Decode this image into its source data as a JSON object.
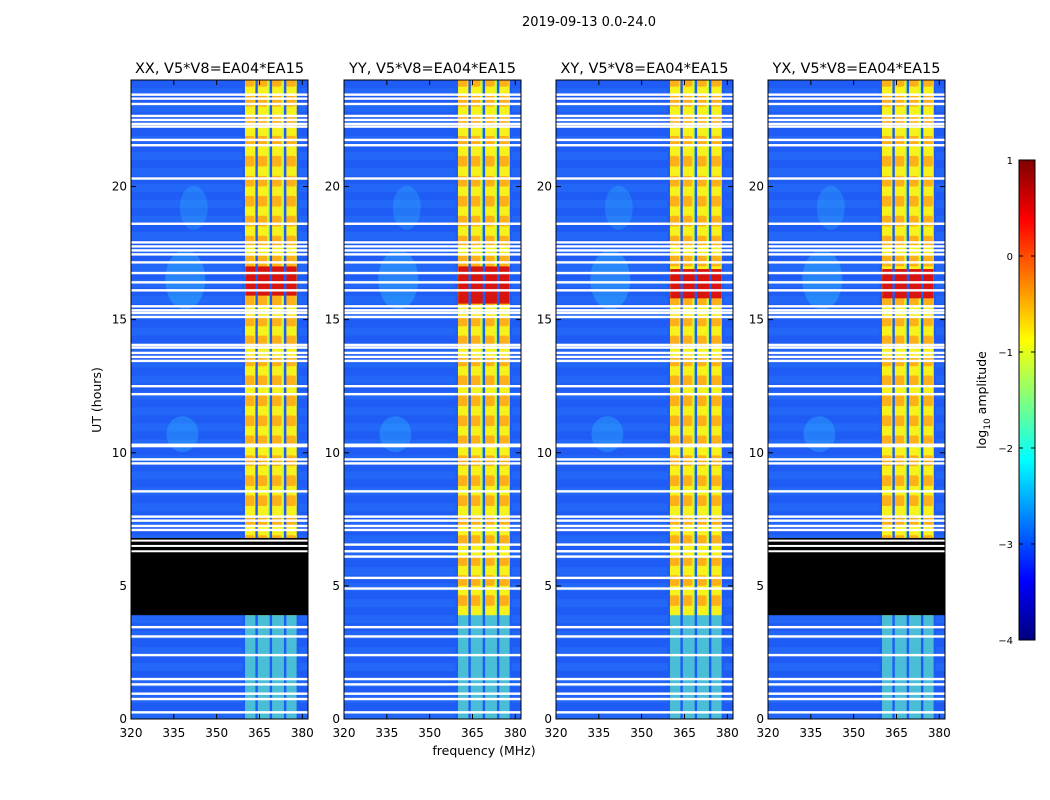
{
  "chart_data": {
    "type": "heatmap",
    "suptitle": "2019-09-13 0.0-24.0",
    "xlabel": "frequency (MHz)",
    "ylabel": "UT (hours)",
    "xlim": [
      320,
      382
    ],
    "ylim": [
      0,
      24
    ],
    "xticks": [
      "320",
      "335",
      "350",
      "365",
      "380"
    ],
    "yticks": [
      "0",
      "5",
      "10",
      "15",
      "20"
    ],
    "colorbar": {
      "label": "log10 amplitude",
      "label_base": "log",
      "label_sub": "10",
      "label_rest": " amplitude",
      "range": [
        -4,
        1
      ],
      "ticks": [
        "1",
        "0",
        "−1",
        "−2",
        "−3",
        "−4"
      ],
      "colormap": "jet",
      "colors": [
        "#00007f",
        "#0000ff",
        "#007fff",
        "#00ffff",
        "#7fff7f",
        "#ffff00",
        "#ff7f00",
        "#ff0000",
        "#7f0000"
      ]
    },
    "bands_mhz": {
      "bright_band": [
        360,
        378
      ],
      "bright_channels": [
        361.5,
        366,
        371,
        376
      ]
    },
    "panels": [
      {
        "title": "XX, V5*V8=EA04*EA15",
        "pol": "XX",
        "blocked_hours": [
          3.9,
          6.8
        ],
        "hot_hours": [
          15.9,
          17.0
        ]
      },
      {
        "title": "YY, V5*V8=EA04*EA15",
        "pol": "YY",
        "blocked_hours": null,
        "hot_hours": [
          15.6,
          17.0
        ]
      },
      {
        "title": "XY, V5*V8=EA04*EA15",
        "pol": "XY",
        "blocked_hours": null,
        "hot_hours": [
          15.8,
          16.9
        ]
      },
      {
        "title": "YX, V5*V8=EA04*EA15",
        "pol": "YX",
        "blocked_hours": [
          3.9,
          6.8
        ],
        "hot_hours": [
          15.8,
          16.9
        ]
      }
    ],
    "flagged_hours": [
      0.25,
      0.75,
      0.95,
      1.3,
      1.5,
      2.4,
      3.1,
      3.45,
      4.9,
      5.3,
      6.1,
      6.3,
      6.55,
      7.1,
      7.25,
      7.45,
      7.6,
      8.55,
      9.6,
      9.75,
      10.25,
      10.3,
      12.2,
      12.5,
      13.45,
      13.6,
      13.75,
      13.95,
      14.05,
      15.1,
      15.25,
      15.35,
      15.5,
      16.1,
      16.4,
      16.75,
      17.15,
      17.45,
      17.6,
      17.75,
      17.9,
      18.6,
      20.3,
      21.55,
      21.75,
      22.25,
      22.35,
      22.5,
      22.65,
      23.1,
      23.3,
      23.45
    ]
  }
}
